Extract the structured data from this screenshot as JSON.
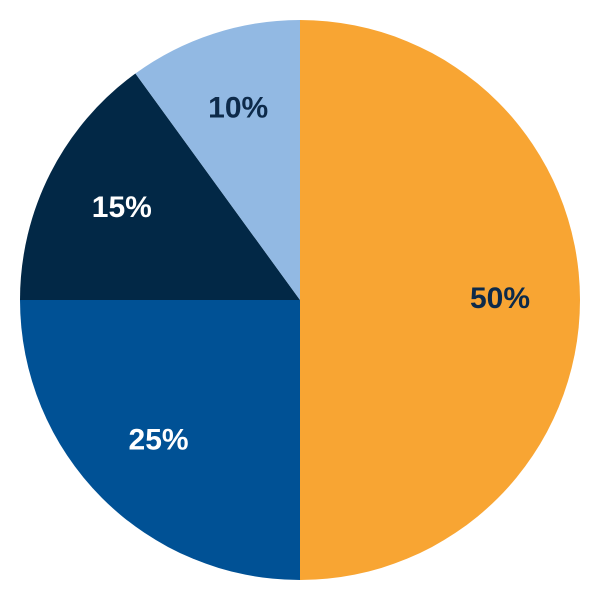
{
  "chart_data": {
    "type": "pie",
    "values": [
      50,
      25,
      15,
      10
    ],
    "value_labels": [
      "50%",
      "25%",
      "15%",
      "10%"
    ],
    "colors": [
      "#f8a533",
      "#005195",
      "#022846",
      "#92b9e3"
    ],
    "label_colors": [
      "#0d2a4a",
      "#ffffff",
      "#ffffff",
      "#0d2a4a"
    ],
    "start_angle": 0,
    "direction": "clockwise"
  }
}
